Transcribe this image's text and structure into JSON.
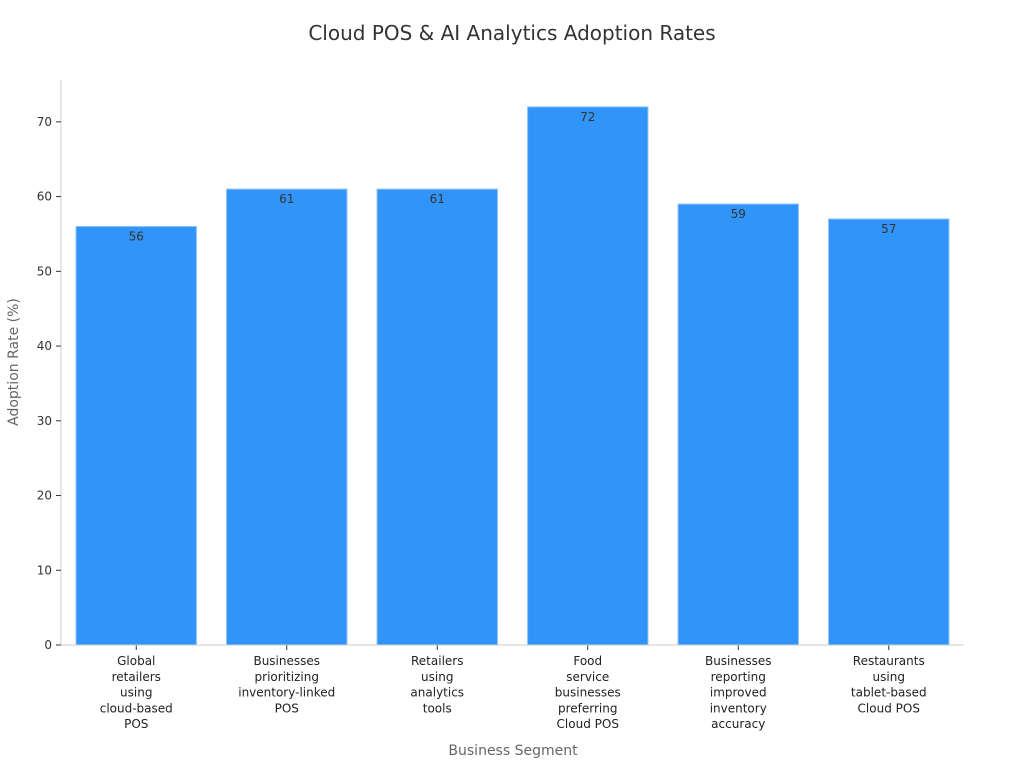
{
  "chart_data": {
    "type": "bar",
    "title": "Cloud POS & AI Analytics Adoption Rates",
    "xlabel": "Business Segment",
    "ylabel": "Adoption Rate (%)",
    "ylim": [
      0,
      75.6
    ],
    "yticks": [
      0,
      10,
      20,
      30,
      40,
      50,
      60,
      70
    ],
    "grid": false,
    "legend": "none",
    "bar_color": "#3194f9",
    "bar_edge_color": "#8cc2f7",
    "categories": [
      [
        "Global",
        "retailers",
        "using",
        "cloud-based",
        "POS"
      ],
      [
        "Businesses",
        "prioritizing",
        "inventory-linked",
        "POS"
      ],
      [
        "Retailers",
        "using",
        "analytics",
        "tools"
      ],
      [
        "Food",
        "service",
        "businesses",
        "preferring",
        "Cloud POS"
      ],
      [
        "Businesses",
        "reporting",
        "improved",
        "inventory",
        "accuracy"
      ],
      [
        "Restaurants",
        "using",
        "tablet-based",
        "Cloud POS"
      ]
    ],
    "values": [
      56,
      61,
      61,
      72,
      59,
      57
    ]
  }
}
